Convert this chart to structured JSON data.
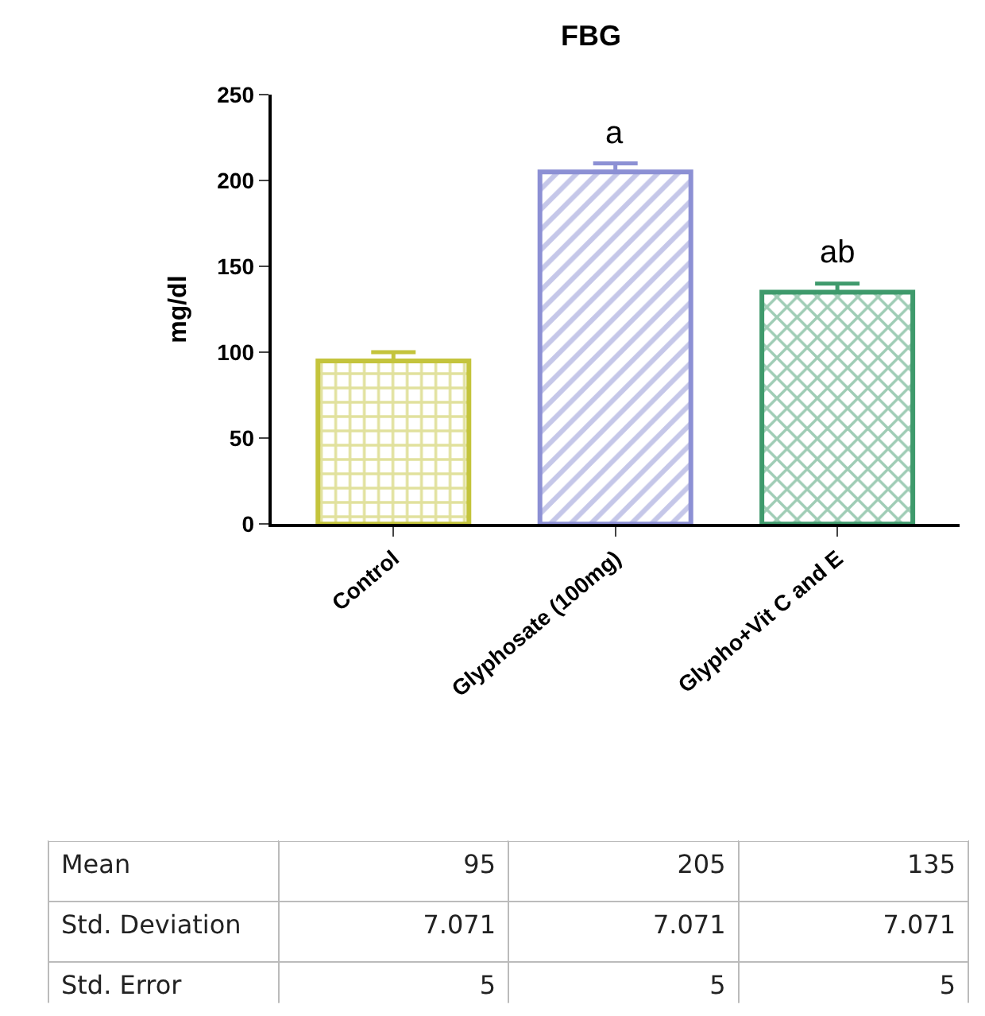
{
  "chart_data": {
    "type": "bar",
    "title": "FBG",
    "ylabel": "mg/dl",
    "categories": [
      "Control",
      "Glyphosate (100mg)",
      "Glypho+Vit C and E"
    ],
    "values": [
      95,
      205,
      135
    ],
    "colors": [
      "#c4c43c",
      "#8c90d4",
      "#3f9a6c"
    ],
    "errors": [
      [
        95,
        100
      ],
      [
        205,
        210
      ],
      [
        135,
        140
      ]
    ],
    "ylim": [
      0,
      250
    ],
    "yticks": [
      0,
      50,
      100,
      150,
      200,
      250
    ],
    "annotations": [
      "Mean",
      "Std. Deviation",
      "Std. Error",
      "95",
      "205",
      "135",
      "7.071",
      "7.071",
      "7.071",
      "5",
      "5",
      "5"
    ],
    "value_labels": [
      null,
      "a",
      "ab"
    ]
  }
}
